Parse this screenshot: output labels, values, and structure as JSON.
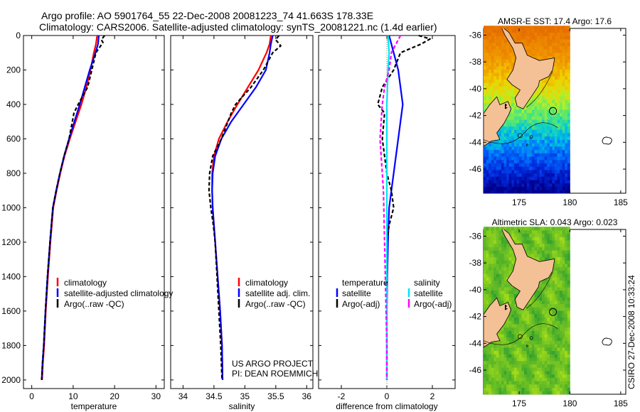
{
  "header": {
    "line1": "Argo profile: AO 5901764_55 22-Dec-2008 20081223_74 41.663S 178.33E",
    "line2": "Climatology: CARS2006. Satellite-adjusted climatology: synTS_20081221.nc (1.4d earlier)"
  },
  "side_label": "CSIRO 27-Dec-2008 10:33:24",
  "project_note": {
    "line1": "US ARGO PROJECT",
    "line2": "PI: DEAN ROEMMICH"
  },
  "colors": {
    "climatology": "#ff0000",
    "satellite": "#0000ff",
    "argo": "#000000",
    "sat_diff_sal": "#00e5ee",
    "argo_diff_sal": "#ff00ff",
    "land": "#f4c096"
  },
  "chart_data": [
    {
      "id": "temperature",
      "type": "line",
      "xlabel": "temperature",
      "ylabel": "",
      "xlim": [
        -2,
        32
      ],
      "ylim": [
        0,
        2050
      ],
      "y_reversed": true,
      "xticks": [
        0,
        10,
        20,
        30
      ],
      "yticks": [
        0,
        200,
        400,
        600,
        800,
        1000,
        1200,
        1400,
        1600,
        1800,
        2000
      ],
      "legend": [
        "climatology",
        "satellite-adjusted climatology",
        "Argo(..raw -QC)"
      ],
      "series": [
        {
          "name": "climatology",
          "color": "#ff0000",
          "dash": "",
          "x": [
            15.8,
            15.5,
            15.0,
            14.2,
            13.2,
            12.0,
            10.6,
            9.2,
            7.9,
            6.9,
            6.0,
            5.2,
            4.5,
            3.9,
            3.4,
            3.0,
            2.7,
            2.5
          ],
          "y": [
            0,
            50,
            100,
            200,
            300,
            400,
            500,
            600,
            700,
            800,
            900,
            1000,
            1200,
            1400,
            1600,
            1800,
            1900,
            2000
          ]
        },
        {
          "name": "satellite-adjusted climatology",
          "color": "#0000ff",
          "dash": "",
          "x": [
            16.2,
            16.0,
            15.4,
            14.0,
            12.8,
            11.6,
            10.3,
            9.0,
            7.8,
            6.8,
            5.9,
            5.1,
            4.4,
            3.8,
            3.3,
            2.9,
            2.6,
            2.4
          ],
          "y": [
            0,
            50,
            100,
            200,
            300,
            400,
            500,
            600,
            700,
            800,
            900,
            1000,
            1200,
            1400,
            1600,
            1800,
            1900,
            2000
          ]
        },
        {
          "name": "Argo(..raw -QC)",
          "color": "#000000",
          "dash": "5,3",
          "x": [
            17.6,
            16.8,
            17.2,
            15.5,
            14.5,
            13.5,
            11.2,
            10.2,
            9.0,
            7.8,
            6.8,
            5.9,
            5.1,
            4.4,
            3.8,
            3.3,
            2.9,
            2.6,
            2.4
          ],
          "y": [
            0,
            25,
            40,
            100,
            200,
            300,
            400,
            450,
            600,
            700,
            800,
            900,
            1000,
            1200,
            1400,
            1600,
            1800,
            1900,
            2000
          ]
        }
      ]
    },
    {
      "id": "salinity",
      "type": "line",
      "xlabel": "salinity",
      "ylabel": "",
      "xlim": [
        33.8,
        36.1
      ],
      "ylim": [
        0,
        2050
      ],
      "y_reversed": true,
      "xticks": [
        34,
        34.5,
        35,
        35.5,
        36
      ],
      "legend": [
        "climatology",
        "satellite adj. clim.",
        "Argo(..raw -QC)"
      ],
      "series": [
        {
          "name": "climatology",
          "color": "#ff0000",
          "dash": "",
          "x": [
            35.42,
            35.4,
            35.35,
            35.22,
            35.05,
            34.88,
            34.72,
            34.58,
            34.5,
            34.47,
            34.47,
            34.48,
            34.52,
            34.56,
            34.6,
            34.63,
            34.64
          ],
          "y": [
            0,
            50,
            100,
            200,
            300,
            400,
            500,
            600,
            700,
            800,
            900,
            1000,
            1200,
            1400,
            1600,
            1800,
            2000
          ]
        },
        {
          "name": "satellite adj. clim.",
          "color": "#0000ff",
          "dash": "",
          "x": [
            35.45,
            35.42,
            35.4,
            35.34,
            35.18,
            34.98,
            34.78,
            34.62,
            34.52,
            34.48,
            34.47,
            34.48,
            34.52,
            34.56,
            34.6,
            34.63,
            34.64
          ],
          "y": [
            0,
            50,
            100,
            200,
            300,
            400,
            500,
            600,
            700,
            800,
            900,
            1000,
            1200,
            1400,
            1600,
            1800,
            2000
          ]
        },
        {
          "name": "Argo(..raw -QC)",
          "color": "#000000",
          "dash": "5,3",
          "x": [
            35.55,
            35.5,
            35.58,
            35.45,
            35.3,
            35.1,
            34.85,
            34.78,
            34.62,
            34.48,
            34.43,
            34.42,
            34.45,
            34.49,
            34.52,
            34.55,
            34.58,
            34.61,
            34.63
          ],
          "y": [
            0,
            25,
            60,
            100,
            200,
            300,
            400,
            450,
            600,
            700,
            800,
            900,
            1000,
            1100,
            1200,
            1400,
            1600,
            1800,
            2000
          ]
        }
      ]
    },
    {
      "id": "difference",
      "type": "line",
      "xlabel": "difference from climatology",
      "ylabel": "",
      "xlim": [
        -3,
        3
      ],
      "ylim": [
        0,
        2050
      ],
      "y_reversed": true,
      "xticks": [
        -2,
        0,
        2
      ],
      "legend_headers": [
        "temperature",
        "salinity"
      ],
      "legend": [
        "satellite",
        "Argo(-adj)",
        "satellite",
        "Argo(-adj)"
      ],
      "series": [
        {
          "name": "temperature satellite",
          "color": "#0000ff",
          "dash": "",
          "x": [
            0.1,
            0.3,
            0.5,
            0.6,
            0.7,
            0.6,
            0.5,
            0.4,
            0.3,
            0.2,
            0.1,
            0.05,
            0.02,
            0.0,
            0.0,
            0.0
          ],
          "y": [
            0,
            100,
            200,
            300,
            400,
            500,
            600,
            700,
            800,
            900,
            1000,
            1200,
            1400,
            1600,
            1800,
            2000
          ]
        },
        {
          "name": "temperature Argo(-adj)",
          "color": "#000000",
          "dash": "5,3",
          "x": [
            1.4,
            1.9,
            1.5,
            0.6,
            0.3,
            -0.2,
            -0.4,
            -0.1,
            -0.2,
            -0.1,
            0.0,
            0.2,
            0.3,
            0.1,
            0.0,
            0.0,
            0.0,
            0.0,
            0.0
          ],
          "y": [
            0,
            20,
            50,
            100,
            200,
            300,
            400,
            450,
            600,
            700,
            800,
            900,
            1000,
            1100,
            1200,
            1400,
            1600,
            1800,
            2000
          ]
        },
        {
          "name": "salinity satellite",
          "color": "#00e5ee",
          "dash": "",
          "x": [
            0.05,
            0.1,
            0.05,
            0.0,
            0.0,
            0.0,
            0.0,
            0.0,
            0.0,
            0.0,
            0.0,
            0.0
          ],
          "y": [
            0,
            100,
            200,
            400,
            600,
            800,
            1000,
            1200,
            1400,
            1600,
            1800,
            2000
          ]
        },
        {
          "name": "salinity Argo(-adj)",
          "color": "#ff00ff",
          "dash": "5,3",
          "x": [
            0.6,
            0.4,
            0.2,
            0.1,
            -0.1,
            -0.2,
            -0.3,
            -0.15,
            -0.1,
            -0.05,
            0.0,
            0.0
          ],
          "y": [
            0,
            50,
            100,
            200,
            300,
            400,
            600,
            900,
            1200,
            1500,
            1800,
            2000
          ]
        }
      ]
    },
    {
      "id": "sst_map",
      "type": "heatmap",
      "title": "AMSR-E SST: 17.4 Argo: 17.6",
      "xlim": [
        171.5,
        185.5
      ],
      "ylim": [
        -47.8,
        -35.5
      ],
      "xticks": [
        175,
        180,
        185
      ],
      "yticks": [
        -36,
        -38,
        -40,
        -42,
        -44,
        -46
      ],
      "data_xlim": [
        171.5,
        180
      ],
      "float_position": [
        178.33,
        -41.66
      ]
    },
    {
      "id": "sla_map",
      "type": "heatmap",
      "title": "Altimetric SLA: 0.043 Argo: 0.023",
      "xlim": [
        171.5,
        185.5
      ],
      "ylim": [
        -47.8,
        -35.5
      ],
      "xticks": [
        175,
        180,
        185
      ],
      "yticks": [
        -36,
        -38,
        -40,
        -42,
        -44,
        -46
      ],
      "data_xlim": [
        171.5,
        180
      ],
      "float_position": [
        178.33,
        -41.66
      ]
    }
  ],
  "legend_temp": [
    "climatology",
    "satellite-adjusted climatology",
    "Argo(..raw -QC)"
  ],
  "legend_sal": [
    "climatology",
    "satellite adj. clim.",
    "Argo(..raw -QC)"
  ],
  "legend_diff": {
    "head_t": "temperature",
    "head_s": "salinity",
    "t1": "satellite",
    "t2": "Argo(-adj)",
    "s1": "satellite",
    "s2": "Argo(-adj)"
  }
}
